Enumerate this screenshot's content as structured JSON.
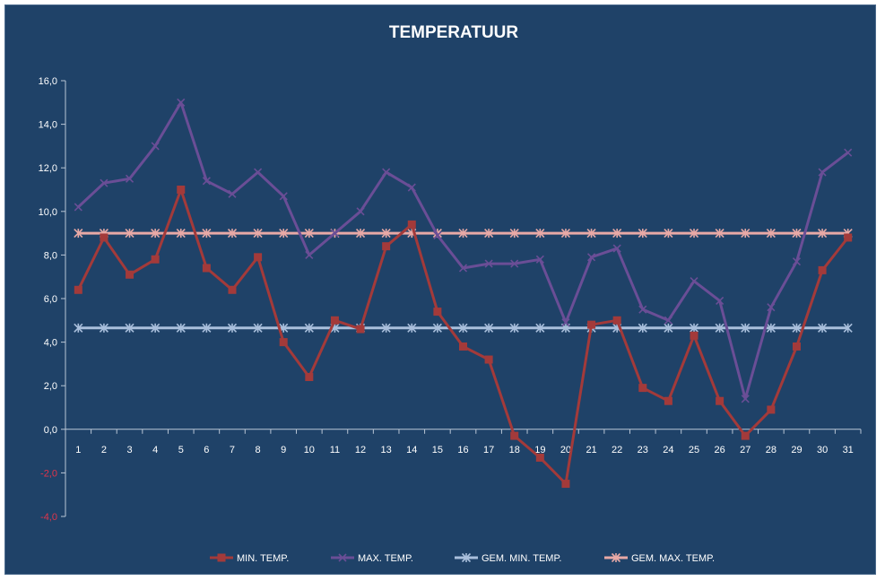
{
  "chart_data": {
    "type": "line",
    "title": "TEMPERATUUR",
    "xlabel": "",
    "ylabel": "",
    "ylim": [
      -4,
      16
    ],
    "y_tick_step": 2,
    "y_tick_labels": [
      "-4,0",
      "-2,0",
      "0,0",
      "2,0",
      "4,0",
      "6,0",
      "8,0",
      "10,0",
      "12,0",
      "14,0",
      "16,0"
    ],
    "grid": false,
    "legend_position": "bottom",
    "categories": [
      "1",
      "2",
      "3",
      "4",
      "5",
      "6",
      "7",
      "8",
      "9",
      "10",
      "11",
      "12",
      "13",
      "14",
      "15",
      "16",
      "17",
      "18",
      "19",
      "20",
      "21",
      "22",
      "23",
      "24",
      "25",
      "26",
      "27",
      "28",
      "29",
      "30",
      "31"
    ],
    "series": [
      {
        "name": "MIN. TEMP.",
        "color": "#a33a3a",
        "marker": "square",
        "values": [
          6.4,
          8.8,
          7.1,
          7.8,
          11.0,
          7.4,
          6.4,
          7.9,
          4.0,
          2.4,
          5.0,
          4.6,
          8.4,
          9.4,
          5.4,
          3.8,
          3.2,
          -0.3,
          -1.3,
          -2.5,
          4.8,
          5.0,
          1.9,
          1.3,
          4.3,
          1.3,
          -0.3,
          0.9,
          3.8,
          7.3,
          8.8
        ]
      },
      {
        "name": "MAX. TEMP.",
        "color": "#6a4e96",
        "marker": "x",
        "values": [
          10.2,
          11.3,
          11.5,
          13.0,
          15.0,
          11.4,
          10.8,
          11.8,
          10.7,
          8.0,
          9.0,
          10.0,
          11.8,
          11.1,
          8.9,
          7.4,
          7.6,
          7.6,
          7.8,
          4.9,
          7.9,
          8.3,
          5.5,
          5.0,
          6.8,
          5.9,
          1.4,
          5.6,
          7.7,
          11.8,
          12.7
        ]
      },
      {
        "name": "GEM. MIN. TEMP.",
        "color": "#a9bfdc",
        "marker": "star",
        "values": [
          4.65,
          4.65,
          4.65,
          4.65,
          4.65,
          4.65,
          4.65,
          4.65,
          4.65,
          4.65,
          4.65,
          4.65,
          4.65,
          4.65,
          4.65,
          4.65,
          4.65,
          4.65,
          4.65,
          4.65,
          4.65,
          4.65,
          4.65,
          4.65,
          4.65,
          4.65,
          4.65,
          4.65,
          4.65,
          4.65,
          4.65
        ]
      },
      {
        "name": "GEM. MAX. TEMP.",
        "color": "#e8a9a6",
        "marker": "star",
        "values": [
          9.0,
          9.0,
          9.0,
          9.0,
          9.0,
          9.0,
          9.0,
          9.0,
          9.0,
          9.0,
          9.0,
          9.0,
          9.0,
          9.0,
          9.0,
          9.0,
          9.0,
          9.0,
          9.0,
          9.0,
          9.0,
          9.0,
          9.0,
          9.0,
          9.0,
          9.0,
          9.0,
          9.0,
          9.0,
          9.0,
          9.0
        ]
      }
    ]
  }
}
